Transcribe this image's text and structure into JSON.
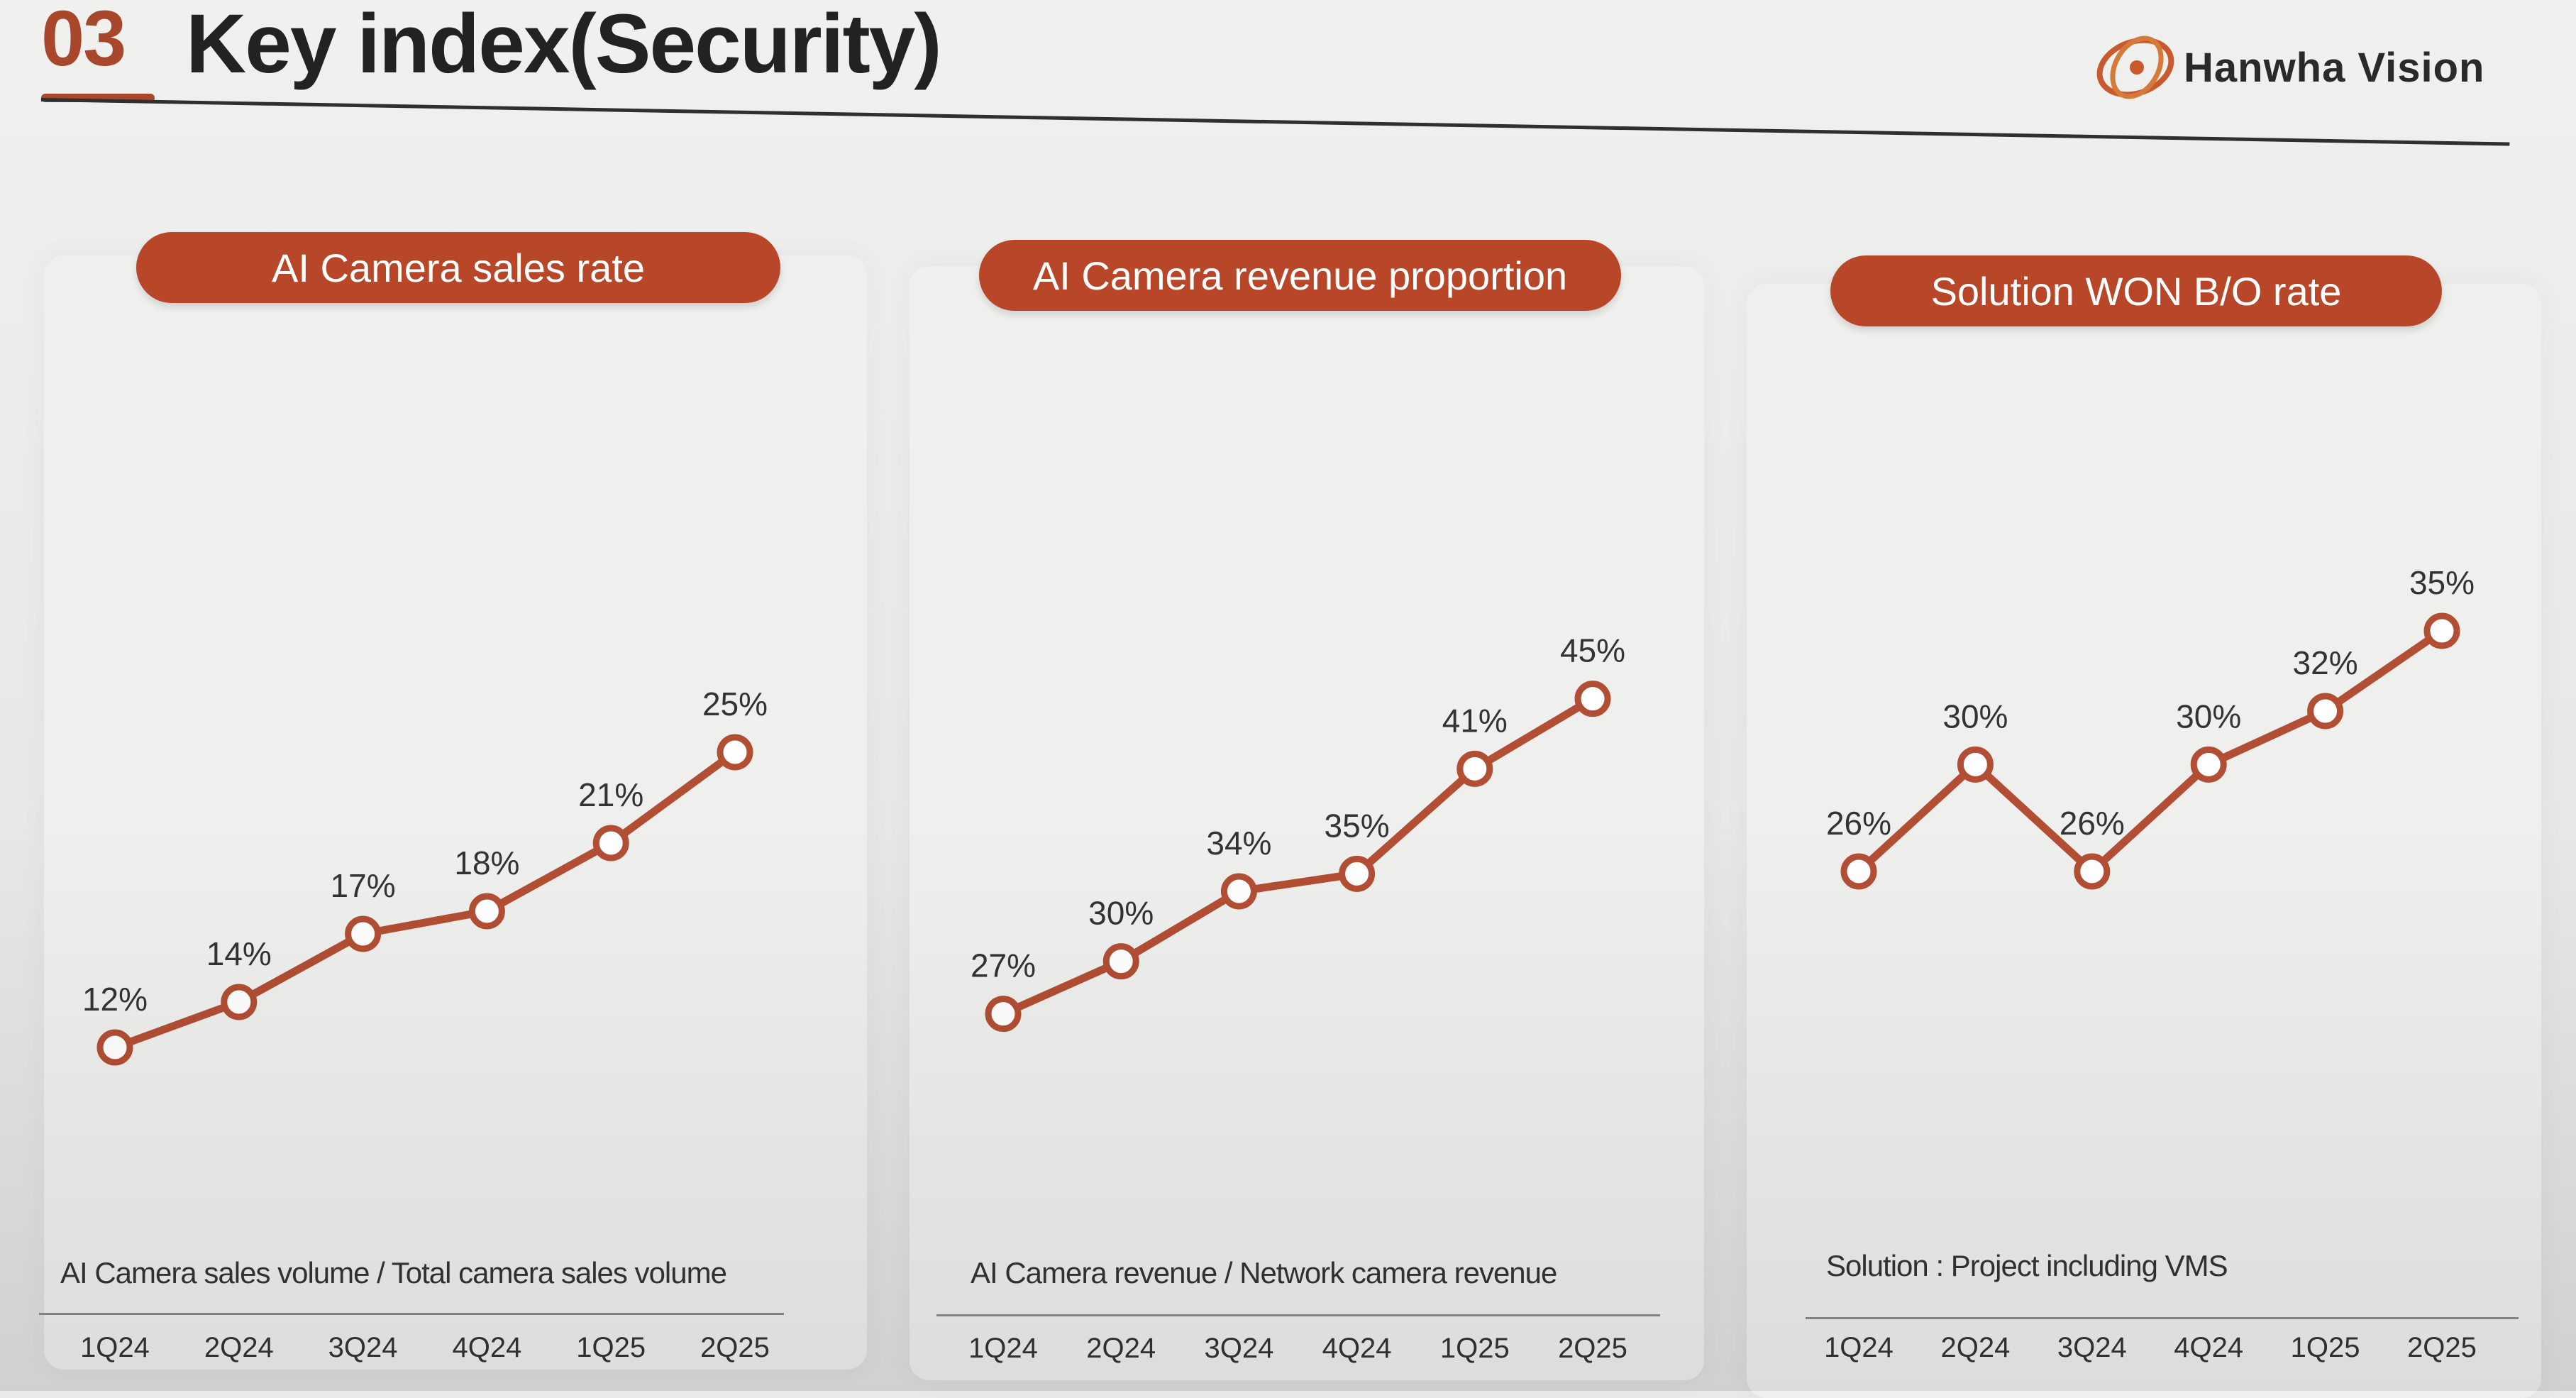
{
  "header": {
    "section_number": "03",
    "title": "Key index(Security)",
    "brand": "Hanwha Vision"
  },
  "colors": {
    "accent": "#b8472a",
    "line": "#b24e33",
    "text": "#333333"
  },
  "chart_data": [
    {
      "type": "line",
      "title": "AI Camera sales rate",
      "categories": [
        "1Q24",
        "2Q24",
        "3Q24",
        "4Q24",
        "1Q25",
        "2Q25"
      ],
      "values": [
        12,
        14,
        17,
        18,
        21,
        25
      ],
      "labels": [
        "12%",
        "14%",
        "17%",
        "18%",
        "21%",
        "25%"
      ],
      "footnote": "AI Camera sales volume / Total camera sales volume",
      "ylim": [
        5,
        40
      ],
      "grid": false
    },
    {
      "type": "line",
      "title": "AI Camera revenue proportion",
      "categories": [
        "1Q24",
        "2Q24",
        "3Q24",
        "4Q24",
        "1Q25",
        "2Q25"
      ],
      "values": [
        27,
        30,
        34,
        35,
        41,
        45
      ],
      "labels": [
        "27%",
        "30%",
        "34%",
        "35%",
        "41%",
        "45%"
      ],
      "footnote": "AI Camera revenue / Network camera revenue",
      "ylim": [
        16,
        61
      ],
      "grid": false
    },
    {
      "type": "line",
      "title": "Solution WON B/O rate",
      "categories": [
        "1Q24",
        "2Q24",
        "3Q24",
        "4Q24",
        "1Q25",
        "2Q25"
      ],
      "values": [
        26,
        30,
        26,
        30,
        32,
        35
      ],
      "labels": [
        "26%",
        "30%",
        "26%",
        "30%",
        "32%",
        "35%"
      ],
      "footnote": "Solution  : Project including VMS",
      "ylim": [
        14,
        44
      ],
      "grid": false
    }
  ]
}
